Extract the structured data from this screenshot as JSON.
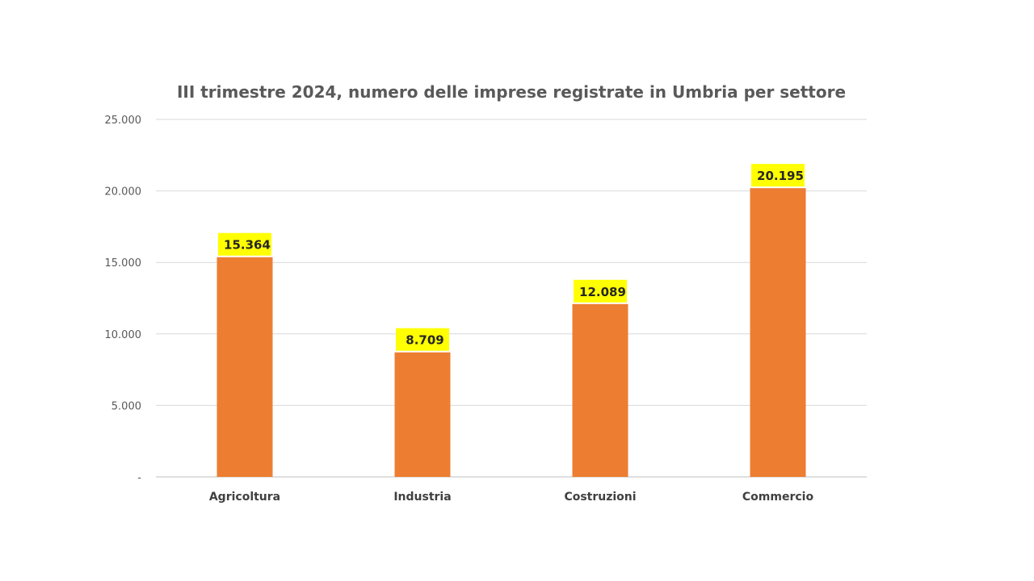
{
  "chart_data": {
    "type": "bar",
    "title": "III trimestre 2024, numero delle imprese registrate in Umbria per settore",
    "categories": [
      "Agricoltura",
      "Industria",
      "Costruzioni",
      "Commercio"
    ],
    "values": [
      15364,
      8709,
      12089,
      20195
    ],
    "data_labels": [
      "15.364",
      "8.709",
      "12.089",
      "20.195"
    ],
    "ylim": [
      0,
      25000
    ],
    "yticks": [
      0,
      5000,
      10000,
      15000,
      20000,
      25000
    ],
    "ytick_labels": [
      "-",
      "5.000",
      "10.000",
      "15.000",
      "20.000",
      "25.000"
    ],
    "xlabel": "",
    "ylabel": "",
    "grid": true,
    "legend": "none"
  },
  "colors": {
    "bar": "#ED7D31",
    "data_label_background": "#FFFF00",
    "gridline": "#D9D9D9",
    "axis_line": "#BFBFBF"
  }
}
